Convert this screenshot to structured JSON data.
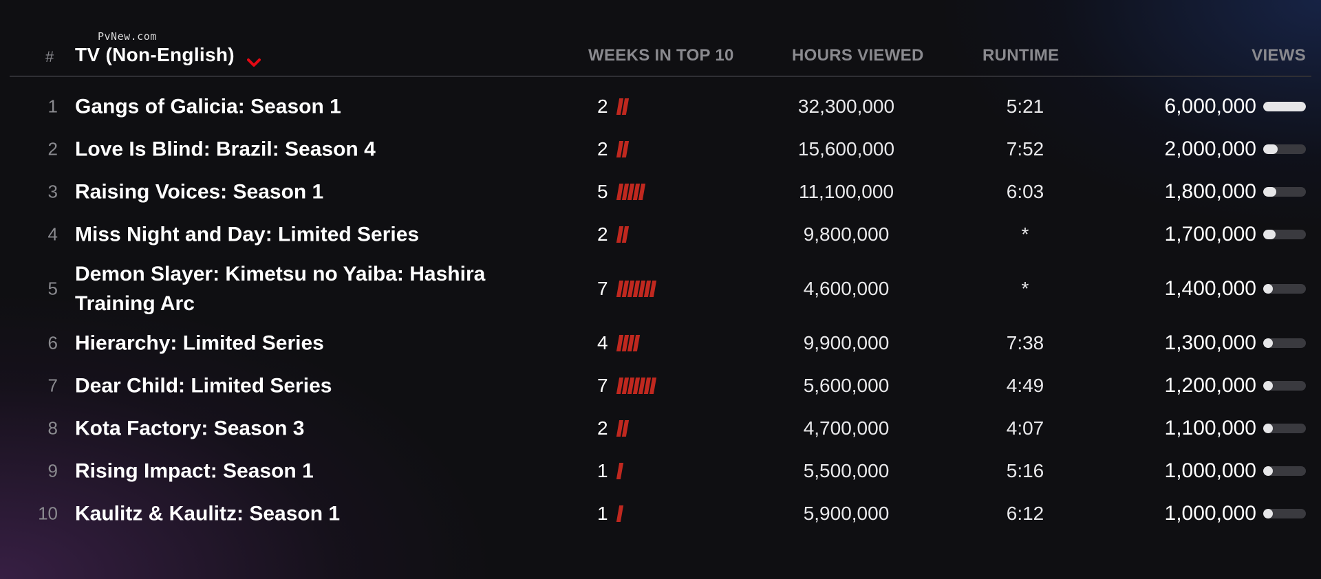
{
  "watermark": "PvNew.com",
  "header": {
    "rank_label": "#",
    "category": "TV (Non-English)",
    "weeks_label": "WEEKS IN TOP 10",
    "hours_label": "HOURS VIEWED",
    "runtime_label": "RUNTIME",
    "views_label": "VIEWS"
  },
  "colors": {
    "accent": "#e50914",
    "week_tick": "#c0281f",
    "background": "#0f0f12"
  },
  "icons": {
    "category_dropdown": "chevron-down-icon"
  },
  "rows": [
    {
      "rank": "1",
      "title": "Gangs of Galicia: Season 1",
      "weeks": "2",
      "hours": "32,300,000",
      "runtime": "5:21",
      "views": "6,000,000",
      "views_value": 6000000
    },
    {
      "rank": "2",
      "title": "Love Is Blind: Brazil: Season 4",
      "weeks": "2",
      "hours": "15,600,000",
      "runtime": "7:52",
      "views": "2,000,000",
      "views_value": 2000000
    },
    {
      "rank": "3",
      "title": "Raising Voices: Season 1",
      "weeks": "5",
      "hours": "11,100,000",
      "runtime": "6:03",
      "views": "1,800,000",
      "views_value": 1800000
    },
    {
      "rank": "4",
      "title": "Miss Night and Day: Limited Series",
      "weeks": "2",
      "hours": "9,800,000",
      "runtime": "*",
      "views": "1,700,000",
      "views_value": 1700000
    },
    {
      "rank": "5",
      "title": "Demon Slayer: Kimetsu no Yaiba: Hashira Training Arc",
      "weeks": "7",
      "hours": "4,600,000",
      "runtime": "*",
      "views": "1,400,000",
      "views_value": 1400000
    },
    {
      "rank": "6",
      "title": "Hierarchy: Limited Series",
      "weeks": "4",
      "hours": "9,900,000",
      "runtime": "7:38",
      "views": "1,300,000",
      "views_value": 1300000
    },
    {
      "rank": "7",
      "title": "Dear Child: Limited Series",
      "weeks": "7",
      "hours": "5,600,000",
      "runtime": "4:49",
      "views": "1,200,000",
      "views_value": 1200000
    },
    {
      "rank": "8",
      "title": "Kota Factory: Season 3",
      "weeks": "2",
      "hours": "4,700,000",
      "runtime": "4:07",
      "views": "1,100,000",
      "views_value": 1100000
    },
    {
      "rank": "9",
      "title": "Rising Impact: Season 1",
      "weeks": "1",
      "hours": "5,500,000",
      "runtime": "5:16",
      "views": "1,000,000",
      "views_value": 1000000
    },
    {
      "rank": "10",
      "title": "Kaulitz & Kaulitz: Season 1",
      "weeks": "1",
      "hours": "5,900,000",
      "runtime": "6:12",
      "views": "1,000,000",
      "views_value": 1000000
    }
  ]
}
